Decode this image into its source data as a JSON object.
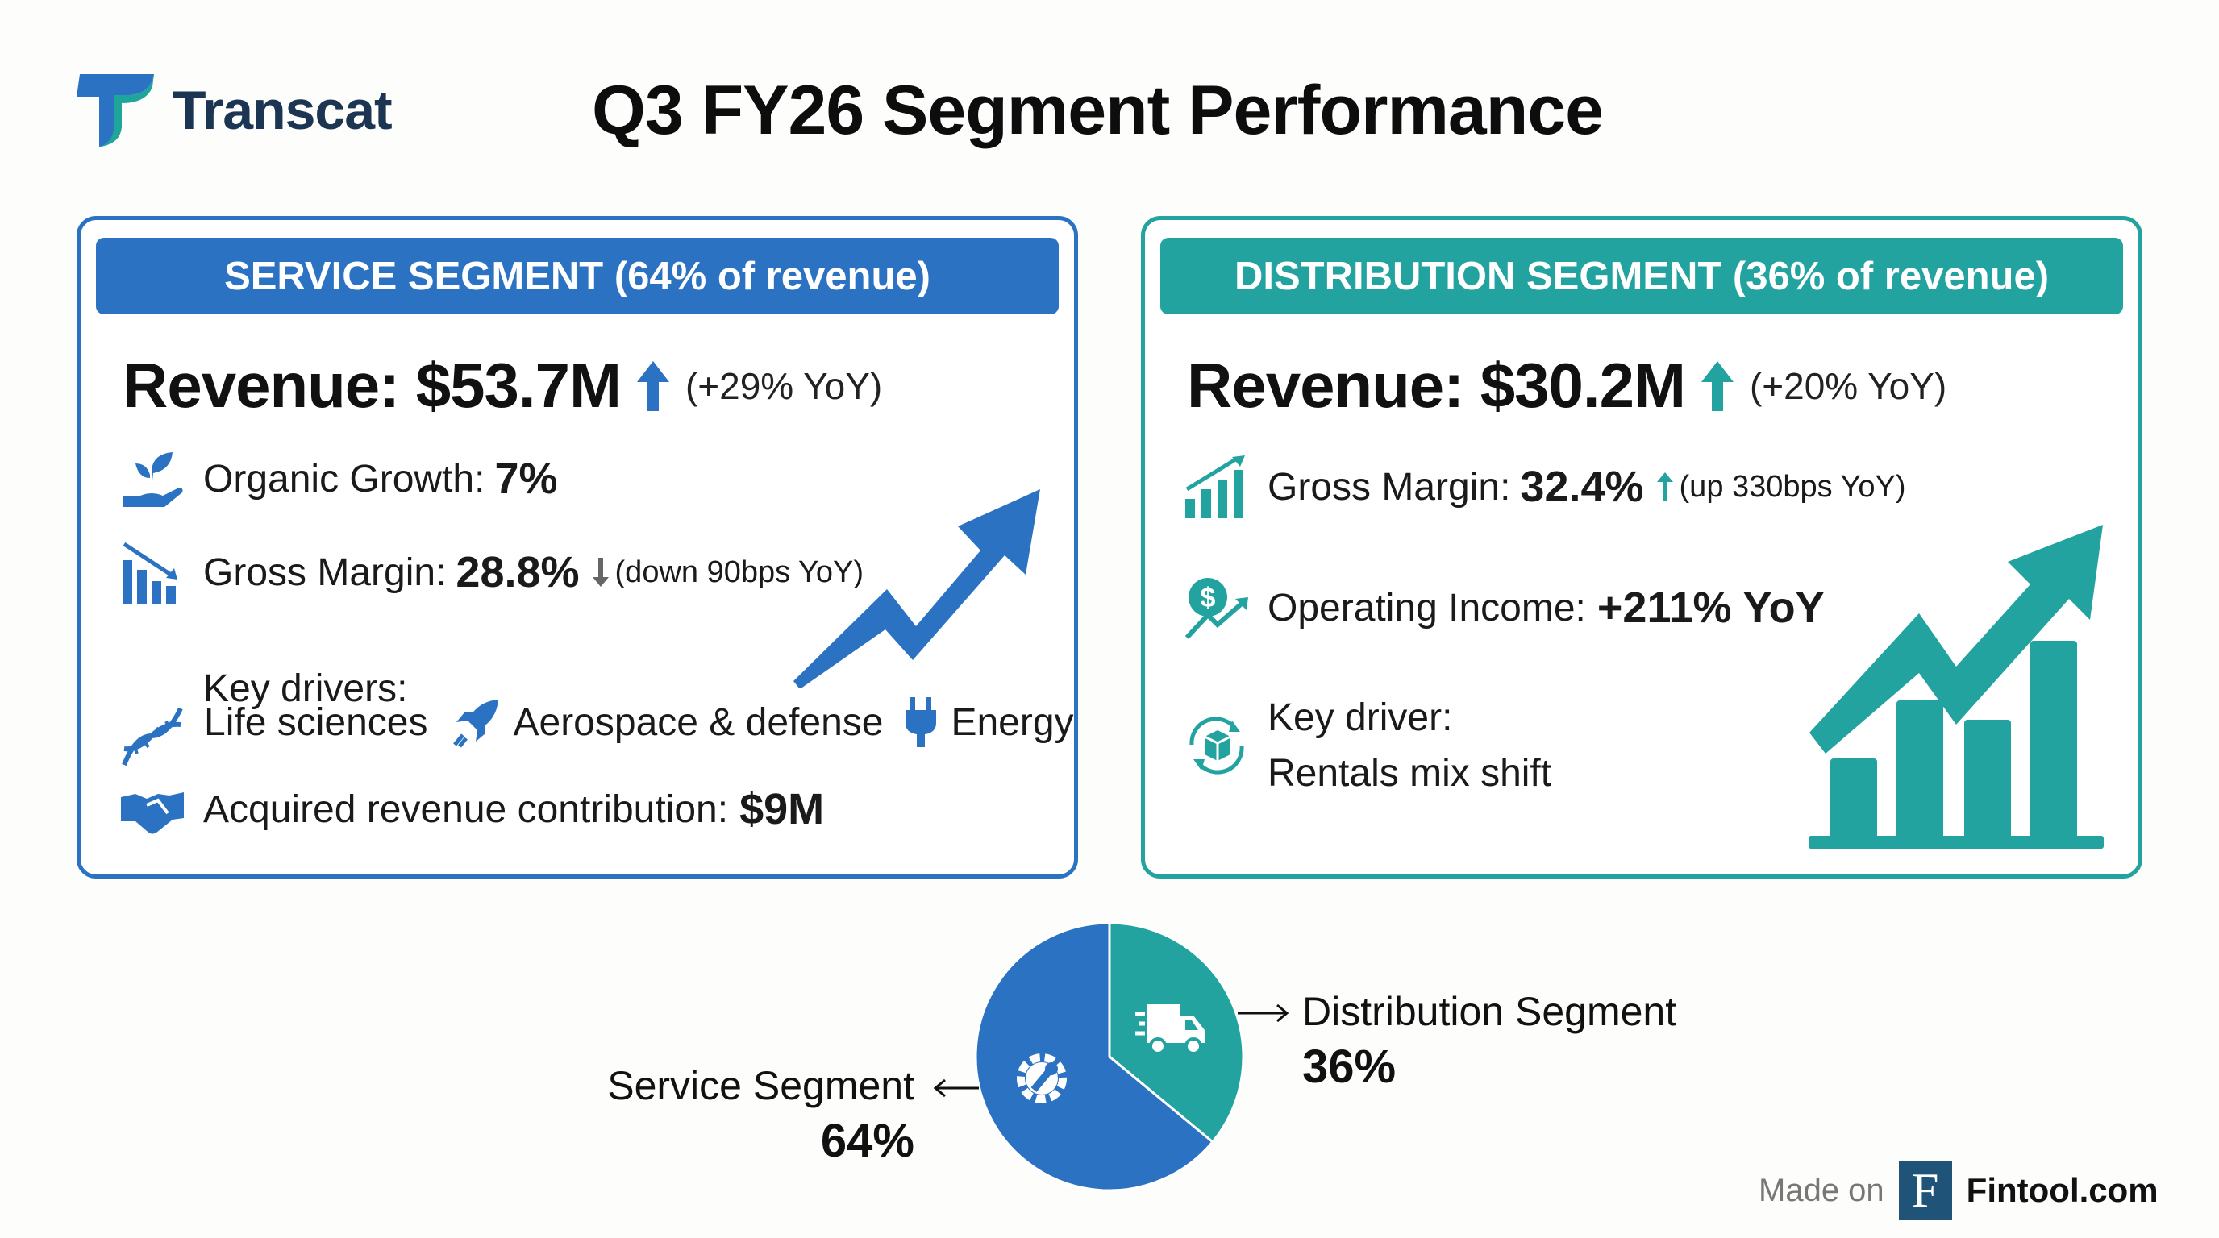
{
  "header": {
    "brand": "Transcat",
    "title": "Q3 FY26 Segment Performance"
  },
  "colors": {
    "service": "#2b73c2",
    "distribution": "#22a3a0",
    "brand_text": "#1b3552"
  },
  "service": {
    "heading": "SERVICE SEGMENT (64% of revenue)",
    "revenue": "Revenue: $53.7M",
    "revenue_change": "(+29% YoY)",
    "organic_label": "Organic Growth:",
    "organic_value": "7%",
    "gm_label": "Gross Margin:",
    "gm_value": "28.8%",
    "gm_change": "(down 90bps YoY)",
    "drivers_label": "Key drivers:",
    "drivers": [
      "Life sciences",
      "Aerospace & defense",
      "Energy"
    ],
    "acquired_label": "Acquired revenue contribution:",
    "acquired_value": "$9M"
  },
  "distribution": {
    "heading": "DISTRIBUTION SEGMENT (36% of revenue)",
    "revenue": "Revenue: $30.2M",
    "revenue_change": "(+20% YoY)",
    "gm_label": "Gross Margin:",
    "gm_value": "32.4%",
    "gm_change": "(up 330bps YoY)",
    "oi_label": "Operating Income:",
    "oi_value": "+211% YoY",
    "driver_label": "Key driver:",
    "driver_value": "Rentals mix shift"
  },
  "chart_data": {
    "type": "pie",
    "categories": [
      "Distribution Segment",
      "Service Segment"
    ],
    "values": [
      36,
      64
    ],
    "labels": [
      "36%",
      "64%"
    ],
    "colors": [
      "#22a3a0",
      "#2b73c2"
    ]
  },
  "footer": {
    "made_on": "Made on",
    "logo_letter": "F",
    "site": "Fintool.com"
  }
}
